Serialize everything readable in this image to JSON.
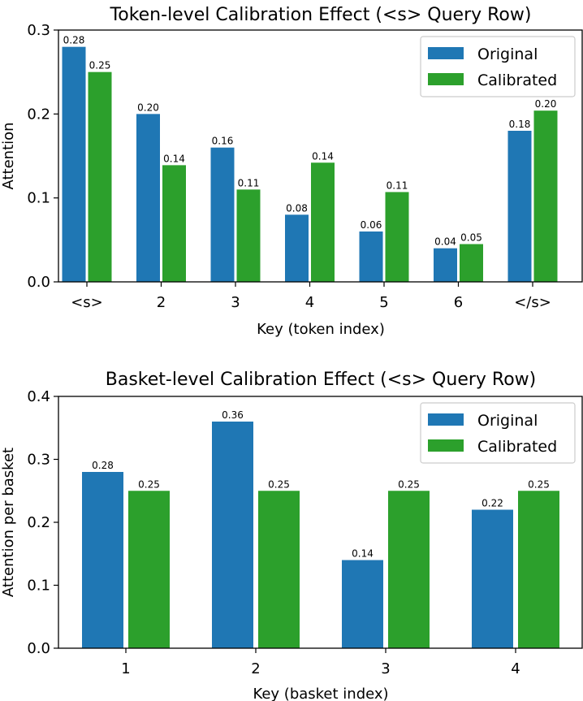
{
  "colors": {
    "original": "#1f77b4",
    "calibrated": "#2ca02c"
  },
  "chart_data": [
    {
      "type": "bar",
      "title": "Token-level Calibration Effect (<s> Query Row)",
      "xlabel": "Key (token index)",
      "ylabel": "Attention",
      "ylim": [
        0,
        0.3
      ],
      "yticks": [
        "0.0",
        "0.1",
        "0.2",
        "0.3"
      ],
      "categories": [
        "<s>",
        "2",
        "3",
        "4",
        "5",
        "6",
        "</s>"
      ],
      "legend_position": "top-right",
      "series": [
        {
          "name": "Original",
          "values": [
            0.28,
            0.2,
            0.16,
            0.08,
            0.06,
            0.04,
            0.18
          ],
          "labels": [
            "0.28",
            "0.20",
            "0.16",
            "0.08",
            "0.06",
            "0.04",
            "0.18"
          ]
        },
        {
          "name": "Calibrated",
          "values": [
            0.25,
            0.139,
            0.11,
            0.142,
            0.107,
            0.045,
            0.204
          ],
          "labels": [
            "0.25",
            "0.14",
            "0.11",
            "0.14",
            "0.11",
            "0.05",
            "0.20"
          ]
        }
      ]
    },
    {
      "type": "bar",
      "title": "Basket-level Calibration Effect (<s> Query Row)",
      "xlabel": "Key (basket index)",
      "ylabel": "Attention per basket",
      "ylim": [
        0,
        0.4
      ],
      "yticks": [
        "0.0",
        "0.1",
        "0.2",
        "0.3",
        "0.4"
      ],
      "categories": [
        "1",
        "2",
        "3",
        "4"
      ],
      "legend_position": "top-right",
      "series": [
        {
          "name": "Original",
          "values": [
            0.28,
            0.36,
            0.14,
            0.22
          ],
          "labels": [
            "0.28",
            "0.36",
            "0.14",
            "0.22"
          ]
        },
        {
          "name": "Calibrated",
          "values": [
            0.25,
            0.25,
            0.25,
            0.25
          ],
          "labels": [
            "0.25",
            "0.25",
            "0.25",
            "0.25"
          ]
        }
      ]
    }
  ]
}
